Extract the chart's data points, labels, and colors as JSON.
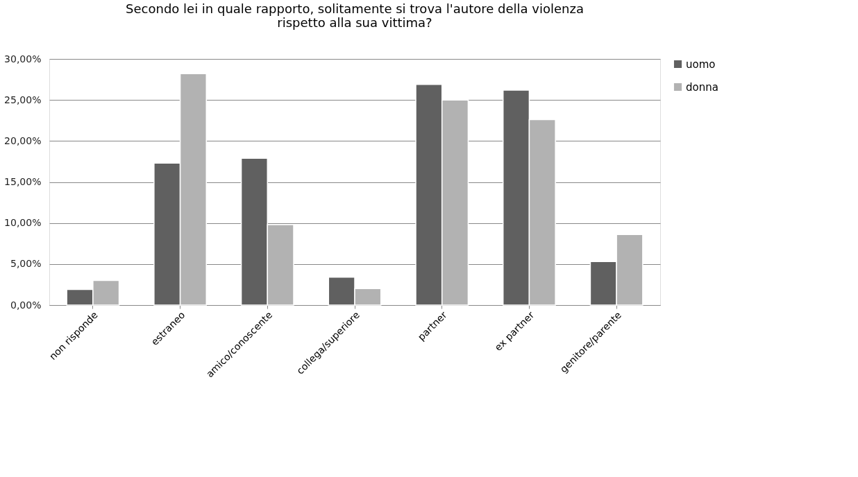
{
  "chart_data": {
    "type": "bar",
    "title": "Secondo lei in quale rapporto, solitamente si trova l'autore della violenza\nrispetto alla sua vittima?",
    "categories": [
      "non risponde",
      "estraneo",
      "amico/conoscente",
      "collega/superiore",
      "partner",
      "ex partner",
      "genitore/parente"
    ],
    "series": [
      {
        "name": "uomo",
        "color": "#606060",
        "values": [
          1.9,
          17.3,
          17.9,
          3.4,
          26.9,
          26.2,
          5.3
        ]
      },
      {
        "name": "donna",
        "color": "#b2b2b2",
        "values": [
          3.0,
          28.2,
          9.8,
          2.0,
          25.0,
          22.6,
          8.6
        ]
      }
    ],
    "ylim": [
      0,
      30
    ],
    "yticks": [
      {
        "value": 0,
        "label": "0,00%"
      },
      {
        "value": 5,
        "label": "5,00%"
      },
      {
        "value": 10,
        "label": "10,00%"
      },
      {
        "value": 15,
        "label": "15,00%"
      },
      {
        "value": 20,
        "label": "20,00%"
      },
      {
        "value": 25,
        "label": "25,00%"
      },
      {
        "value": 30,
        "label": "30,00%"
      }
    ],
    "grid": "y",
    "legend": "right"
  }
}
